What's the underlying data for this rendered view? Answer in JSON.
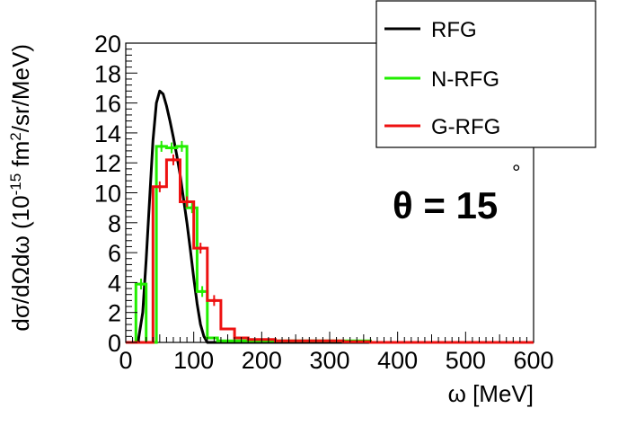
{
  "chart_data": {
    "type": "line",
    "xlabel": "ω [MeV]",
    "ylabel": "dσ/dΩdω (10",
    "ylabel_sup": "-15",
    "ylabel_rest": " fm",
    "ylabel_sup2": "2",
    "ylabel_tail": "/sr/MeV)",
    "xlim": [
      0,
      600
    ],
    "ylim": [
      0,
      20
    ],
    "xticks": [
      0,
      100,
      200,
      300,
      400,
      500,
      600
    ],
    "yticks": [
      0,
      2,
      4,
      6,
      8,
      10,
      12,
      14,
      16,
      18,
      20
    ],
    "annotation": {
      "text": "θ = 15",
      "superscript": "°"
    },
    "legend": {
      "placement": "top-right",
      "entries": [
        {
          "label": "RFG",
          "color": "#000000"
        },
        {
          "label": "N-RFG",
          "color": "#22ee00"
        },
        {
          "label": "G-RFG",
          "color": "#ee1111"
        }
      ]
    },
    "series": [
      {
        "name": "RFG",
        "style": "curve",
        "color": "#000000",
        "points": [
          [
            18,
            0
          ],
          [
            25,
            2
          ],
          [
            30,
            5.5
          ],
          [
            35,
            9.5
          ],
          [
            40,
            13.5
          ],
          [
            45,
            16
          ],
          [
            50,
            16.8
          ],
          [
            55,
            16.6
          ],
          [
            60,
            15.8
          ],
          [
            65,
            14.8
          ],
          [
            70,
            13.7
          ],
          [
            75,
            12.5
          ],
          [
            80,
            11.2
          ],
          [
            85,
            9.6
          ],
          [
            90,
            8
          ],
          [
            95,
            6.2
          ],
          [
            100,
            4.3
          ],
          [
            105,
            2.6
          ],
          [
            110,
            1.2
          ],
          [
            115,
            0.4
          ],
          [
            120,
            0
          ]
        ]
      },
      {
        "name": "N-RFG",
        "style": "histogram",
        "color": "#22ee00",
        "bin_width": 15,
        "x_start": 0,
        "values": [
          0,
          3.9,
          0,
          13.1,
          13.0,
          13.1,
          9.0,
          3.4,
          0.3,
          0.1,
          0.1,
          0.1,
          0.1,
          0.1,
          0.1,
          0.1,
          0.1,
          0.1,
          0.1,
          0.1,
          0.1,
          0.1,
          0.1,
          0.1,
          0,
          0,
          0,
          0,
          0,
          0,
          0,
          0,
          0,
          0,
          0,
          0,
          0,
          0,
          0,
          0
        ],
        "value_overrides": {
          "2": 0
        }
      },
      {
        "name": "G-RFG",
        "style": "histogram",
        "color": "#ee1111",
        "bin_width": 20,
        "x_start": 0,
        "values": [
          0,
          0,
          10.4,
          12.2,
          9.4,
          6.3,
          2.8,
          0.9,
          0.3,
          0.2,
          0.2,
          0.1,
          0.1,
          0.1,
          0.1,
          0.1,
          0.05,
          0.05,
          0,
          0,
          0,
          0,
          0,
          0,
          0,
          0,
          0,
          0,
          0,
          0
        ]
      }
    ]
  }
}
